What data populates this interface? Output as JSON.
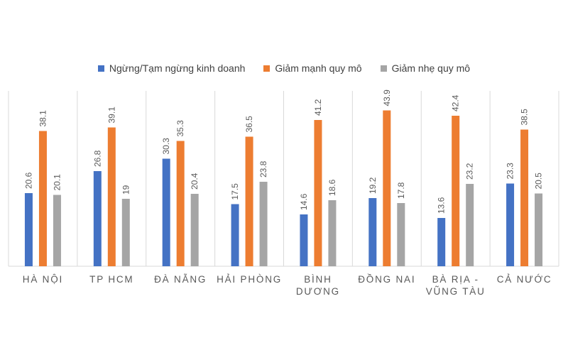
{
  "chart_data": {
    "type": "bar",
    "title": "",
    "xlabel": "",
    "ylabel": "",
    "categories": [
      [
        "HÀ NỘI"
      ],
      [
        "TP HCM"
      ],
      [
        "ĐÀ NẴNG"
      ],
      [
        "HẢI PHÒNG"
      ],
      [
        "BÌNH",
        "DƯƠNG"
      ],
      [
        "ĐỒNG NAI"
      ],
      [
        "BÀ RỊA -",
        "VŨNG TÀU"
      ],
      [
        "CẢ NƯỚC"
      ]
    ],
    "series": [
      {
        "name": "Ngừng/Tạm ngừng kinh doanh",
        "color": "#4472C4",
        "values": [
          20.6,
          26.8,
          30.3,
          17.5,
          14.6,
          19.2,
          13.6,
          23.3
        ]
      },
      {
        "name": "Giảm mạnh quy mô",
        "color": "#ED7D31",
        "values": [
          38.1,
          39.1,
          35.3,
          36.5,
          41.2,
          43.9,
          42.4,
          38.5
        ]
      },
      {
        "name": "Giảm nhẹ quy mô",
        "color": "#A5A5A5",
        "values": [
          20.1,
          19,
          20.4,
          23.8,
          18.6,
          17.8,
          23.2,
          20.5
        ]
      }
    ],
    "ylim": [
      0,
      50
    ],
    "grid": false,
    "legend_position": "top-center",
    "data_labels": "rotated-above-bars"
  }
}
